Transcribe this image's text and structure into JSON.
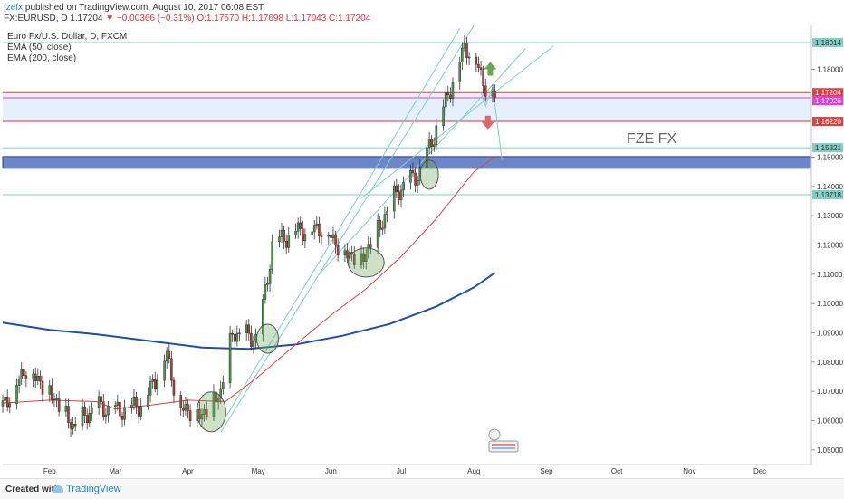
{
  "header": {
    "user": "fzefx",
    "published": " published on TradingView.com, August 10, 2017 06:08 EST",
    "symbol": "FX:EURUSD, D",
    "price": "1.17204",
    "change": "−0.00366 (−0.31%)",
    "ohlc": "O:1.17570 H:1.17698 L:1.17043 C:1.17204"
  },
  "footer": {
    "created": "Created with",
    "brand": "TradingView"
  },
  "chart_data": {
    "type": "candlestick",
    "title": "Euro Fx/U.S. Dollar, D, FXCM",
    "legend": [
      "EMA (50, close)",
      "EMA (200, close)"
    ],
    "watermark": "FZE FX",
    "ylim": [
      1.045,
      1.195
    ],
    "y_ticks": [
      "1.05000",
      "1.06000",
      "1.07000",
      "1.08000",
      "1.09000",
      "1.10000",
      "1.11000",
      "1.12000",
      "1.13000",
      "1.14000",
      "1.15000",
      "1.18000"
    ],
    "x_ticks": [
      {
        "label": "Feb",
        "day": 35
      },
      {
        "label": "Mar",
        "day": 63
      },
      {
        "label": "Apr",
        "day": 94
      },
      {
        "label": "May",
        "day": 124
      },
      {
        "label": "Jun",
        "day": 155
      },
      {
        "label": "Jul",
        "day": 185
      },
      {
        "label": "Aug",
        "day": 216
      },
      {
        "label": "Sep",
        "day": 247
      },
      {
        "label": "Oct",
        "day": 277
      },
      {
        "label": "Nov",
        "day": 308
      },
      {
        "label": "Dec",
        "day": 338
      }
    ],
    "xlim": [
      15,
      360
    ],
    "last_day": 225,
    "price_labels": [
      {
        "text": "1.18914",
        "value": 1.18914,
        "color": "#7fcfc4",
        "text_color": "#333"
      },
      {
        "text": "1.17204",
        "value": 1.17204,
        "color": "#e04040",
        "text_color": "#ffffff"
      },
      {
        "text": "1.17026",
        "value": 1.17026,
        "color": "#e040e0",
        "text_color": "#ffffff"
      },
      {
        "text": "1.16220",
        "value": 1.1622,
        "color": "#e04040",
        "text_color": "#ffffff"
      },
      {
        "text": "1.15321",
        "value": 1.15321,
        "color": "#7fcfc4",
        "text_color": "#333"
      },
      {
        "text": "1.13718",
        "value": 1.13718,
        "color": "#7fcfc4",
        "text_color": "#333"
      }
    ],
    "support_band": [
      1.1462,
      1.1502
    ],
    "resistance_zone": [
      1.1617,
      1.1722
    ],
    "ema50_points": [
      [
        15,
        1.066
      ],
      [
        35,
        1.067
      ],
      [
        55,
        1.0665
      ],
      [
        63,
        1.064
      ],
      [
        80,
        1.0655
      ],
      [
        94,
        1.067
      ],
      [
        110,
        1.0665
      ],
      [
        124,
        1.075
      ],
      [
        140,
        1.086
      ],
      [
        155,
        1.096
      ],
      [
        170,
        1.105
      ],
      [
        185,
        1.116
      ],
      [
        200,
        1.129
      ],
      [
        216,
        1.145
      ],
      [
        225,
        1.15
      ]
    ],
    "ema200_points": [
      [
        15,
        1.0935
      ],
      [
        35,
        1.091
      ],
      [
        55,
        1.0895
      ],
      [
        80,
        1.087
      ],
      [
        100,
        1.085
      ],
      [
        120,
        1.0845
      ],
      [
        140,
        1.086
      ],
      [
        160,
        1.089
      ],
      [
        180,
        1.093
      ],
      [
        200,
        1.099
      ],
      [
        216,
        1.1055
      ],
      [
        225,
        1.1105
      ]
    ],
    "arrows": [
      {
        "type": "up",
        "day": 223,
        "value": 1.18,
        "color": "#6aa84f"
      },
      {
        "type": "down",
        "day": 222,
        "value": 1.162,
        "color": "#e06666"
      }
    ]
  }
}
